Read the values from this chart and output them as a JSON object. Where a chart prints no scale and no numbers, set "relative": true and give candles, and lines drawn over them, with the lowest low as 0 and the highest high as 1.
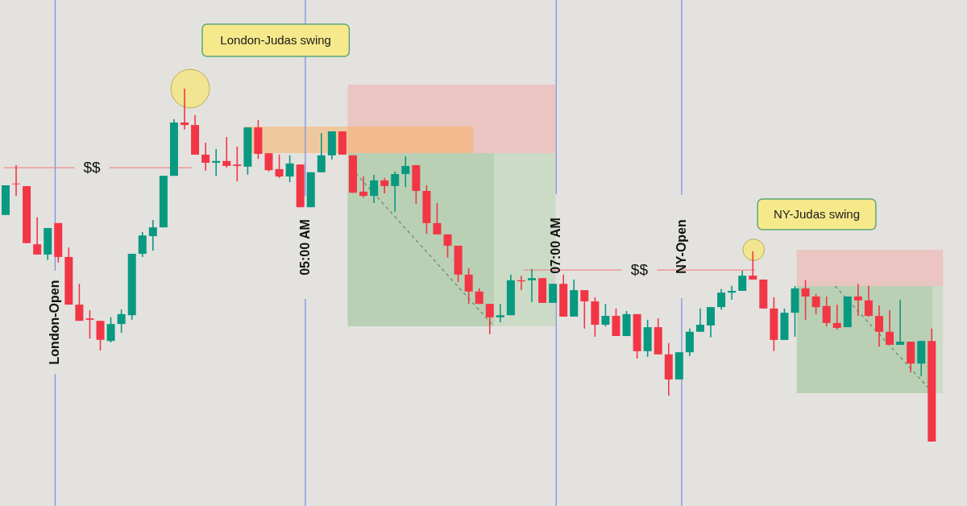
{
  "chart_data": {
    "type": "candlestick",
    "relative": true,
    "tick_labels": false,
    "categories": [
      null,
      null,
      null,
      null,
      null,
      null,
      null,
      null,
      null,
      null,
      null,
      null,
      null,
      null,
      null,
      null,
      null,
      null,
      null,
      null,
      null,
      null,
      null,
      null,
      null,
      null,
      null,
      null,
      null,
      null,
      null,
      null,
      null,
      null,
      null,
      null,
      null,
      null,
      null,
      null,
      null,
      null,
      null,
      null,
      null,
      null,
      null,
      null,
      null,
      null,
      null,
      null,
      null,
      null,
      null,
      null,
      null,
      null,
      null,
      null,
      null,
      null,
      null,
      null,
      null,
      null,
      null,
      null,
      null,
      null,
      null,
      null,
      null,
      null,
      null,
      null,
      null,
      null,
      null,
      null,
      null,
      null,
      null,
      null,
      null,
      null,
      null,
      null,
      null
    ],
    "ohlc": [
      [
        0.642,
        0.726,
        0.642,
        0.726
      ],
      [
        0.731,
        0.783,
        0.696,
        0.729
      ],
      [
        0.724,
        0.724,
        0.562,
        0.562
      ],
      [
        0.559,
        0.635,
        0.53,
        0.53
      ],
      [
        0.53,
        0.605,
        0.514,
        0.605
      ],
      [
        0.619,
        0.619,
        0.507,
        0.523
      ],
      [
        0.523,
        0.55,
        0.388,
        0.388
      ],
      [
        0.388,
        0.447,
        0.342,
        0.342
      ],
      [
        0.349,
        0.372,
        0.292,
        0.345
      ],
      [
        0.342,
        0.342,
        0.258,
        0.288
      ],
      [
        0.285,
        0.352,
        0.281,
        0.333
      ],
      [
        0.333,
        0.374,
        0.308,
        0.361
      ],
      [
        0.358,
        0.532,
        0.345,
        0.532
      ],
      [
        0.532,
        0.594,
        0.523,
        0.584
      ],
      [
        0.582,
        0.628,
        0.541,
        0.607
      ],
      [
        0.607,
        0.753,
        0.607,
        0.753
      ],
      [
        0.753,
        0.913,
        0.753,
        0.904
      ],
      [
        0.904,
        1.0,
        0.884,
        0.897
      ],
      [
        0.897,
        0.925,
        0.813,
        0.813
      ],
      [
        0.813,
        0.847,
        0.767,
        0.79
      ],
      [
        0.79,
        0.829,
        0.753,
        0.795
      ],
      [
        0.795,
        0.863,
        0.776,
        0.781
      ],
      [
        0.785,
        0.836,
        0.737,
        0.781
      ],
      [
        0.779,
        0.89,
        0.756,
        0.89
      ],
      [
        0.89,
        0.911,
        0.801,
        0.815
      ],
      [
        0.817,
        0.817,
        0.765,
        0.769
      ],
      [
        0.772,
        0.813,
        0.747,
        0.751
      ],
      [
        0.751,
        0.811,
        0.735,
        0.788
      ],
      [
        0.785,
        0.785,
        0.664,
        0.664
      ],
      [
        0.664,
        0.763,
        0.664,
        0.763
      ],
      [
        0.763,
        0.874,
        0.763,
        0.811
      ],
      [
        0.811,
        0.879,
        0.799,
        0.879
      ],
      [
        0.879,
        0.879,
        0.813,
        0.813
      ],
      [
        0.811,
        0.811,
        0.705,
        0.705
      ],
      [
        0.708,
        0.751,
        0.692,
        0.696
      ],
      [
        0.696,
        0.756,
        0.676,
        0.74
      ],
      [
        0.74,
        0.747,
        0.703,
        0.724
      ],
      [
        0.724,
        0.765,
        0.651,
        0.758
      ],
      [
        0.758,
        0.808,
        0.721,
        0.781
      ],
      [
        0.783,
        0.783,
        0.674,
        0.71
      ],
      [
        0.71,
        0.726,
        0.589,
        0.619
      ],
      [
        0.619,
        0.676,
        0.587,
        0.587
      ],
      [
        0.587,
        0.587,
        0.521,
        0.555
      ],
      [
        0.555,
        0.555,
        0.452,
        0.473
      ],
      [
        0.473,
        0.491,
        0.39,
        0.425
      ],
      [
        0.425,
        0.434,
        0.39,
        0.39
      ],
      [
        0.39,
        0.39,
        0.304,
        0.352
      ],
      [
        0.352,
        0.39,
        0.338,
        0.358
      ],
      [
        0.358,
        0.473,
        0.358,
        0.457
      ],
      [
        0.457,
        0.47,
        0.429,
        0.454
      ],
      [
        0.457,
        0.489,
        0.395,
        0.463
      ],
      [
        0.463,
        0.463,
        0.393,
        0.393
      ],
      [
        0.393,
        0.447,
        0.393,
        0.447
      ],
      [
        0.447,
        0.473,
        0.354,
        0.354
      ],
      [
        0.354,
        0.459,
        0.354,
        0.429
      ],
      [
        0.429,
        0.429,
        0.32,
        0.397
      ],
      [
        0.397,
        0.409,
        0.297,
        0.331
      ],
      [
        0.331,
        0.39,
        0.326,
        0.356
      ],
      [
        0.356,
        0.377,
        0.299,
        0.299
      ],
      [
        0.299,
        0.37,
        0.299,
        0.361
      ],
      [
        0.361,
        0.361,
        0.235,
        0.256
      ],
      [
        0.256,
        0.345,
        0.24,
        0.324
      ],
      [
        0.324,
        0.349,
        0.247,
        0.247
      ],
      [
        0.247,
        0.279,
        0.13,
        0.176
      ],
      [
        0.176,
        0.253,
        0.176,
        0.253
      ],
      [
        0.253,
        0.32,
        0.242,
        0.311
      ],
      [
        0.311,
        0.377,
        0.311,
        0.331
      ],
      [
        0.329,
        0.381,
        0.295,
        0.381
      ],
      [
        0.381,
        0.432,
        0.374,
        0.422
      ],
      [
        0.422,
        0.441,
        0.402,
        0.427
      ],
      [
        0.427,
        0.484,
        0.427,
        0.47
      ],
      [
        0.47,
        0.539,
        0.459,
        0.459
      ],
      [
        0.459,
        0.459,
        0.377,
        0.377
      ],
      [
        0.377,
        0.409,
        0.256,
        0.288
      ],
      [
        0.288,
        0.377,
        0.288,
        0.365
      ],
      [
        0.365,
        0.441,
        0.297,
        0.434
      ],
      [
        0.434,
        0.457,
        0.345,
        0.411
      ],
      [
        0.411,
        0.418,
        0.361,
        0.381
      ],
      [
        0.384,
        0.411,
        0.326,
        0.336
      ],
      [
        0.336,
        0.388,
        0.317,
        0.322
      ],
      [
        0.324,
        0.411,
        0.324,
        0.411
      ],
      [
        0.411,
        0.447,
        0.356,
        0.4
      ],
      [
        0.4,
        0.441,
        0.354,
        0.356
      ],
      [
        0.356,
        0.386,
        0.269,
        0.311
      ],
      [
        0.311,
        0.372,
        0.274,
        0.274
      ],
      [
        0.274,
        0.402,
        0.274,
        0.283
      ],
      [
        0.283,
        0.283,
        0.196,
        0.221
      ],
      [
        0.221,
        0.285,
        0.185,
        0.285
      ],
      [
        0.285,
        0.32,
        0,
        0
      ]
    ],
    "colors": [
      "#089981",
      "#f23645",
      "#f23645",
      "#f23645",
      "#089981",
      "#f23645",
      "#f23645",
      "#f23645",
      "#f23645",
      "#f23645",
      "#089981",
      "#089981",
      "#089981",
      "#089981",
      "#089981",
      "#089981",
      "#089981",
      "#f23645",
      "#f23645",
      "#f23645",
      "#089981",
      "#f23645",
      "#f23645",
      "#089981",
      "#f23645",
      "#f23645",
      "#f23645",
      "#089981",
      "#f23645",
      "#089981",
      "#089981",
      "#089981",
      "#f23645",
      "#f23645",
      "#f23645",
      "#089981",
      "#f23645",
      "#089981",
      "#089981",
      "#f23645",
      "#f23645",
      "#f23645",
      "#f23645",
      "#f23645",
      "#f23645",
      "#f23645",
      "#f23645",
      "#089981",
      "#089981",
      "#f23645",
      "#089981",
      "#f23645",
      "#089981",
      "#f23645",
      "#089981",
      "#f23645",
      "#f23645",
      "#089981",
      "#f23645",
      "#089981",
      "#f23645",
      "#089981",
      "#f23645",
      "#f23645",
      "#089981",
      "#089981",
      "#089981",
      "#089981",
      "#089981",
      "#089981",
      "#089981",
      "#f23645",
      "#f23645",
      "#f23645",
      "#089981",
      "#089981",
      "#f23645",
      "#f23645",
      "#f23645",
      "#f23645",
      "#089981",
      "#f23645",
      "#f23645",
      "#f23645",
      "#f23645",
      "#089981",
      "#f23645",
      "#089981",
      "#f23645"
    ],
    "ref_lines": [
      {
        "axis": "y",
        "value": 0.776,
        "label": "$$",
        "color": "#ef8a8a"
      },
      {
        "axis": "y",
        "value": 0.486,
        "label": "$$",
        "color": "#ef8a8a"
      }
    ],
    "annotations": [
      "London-Judas swing",
      "NY-Judas swing",
      "London-Open",
      "05:00  AM",
      "07:00 AM",
      "NY-Open"
    ]
  }
}
